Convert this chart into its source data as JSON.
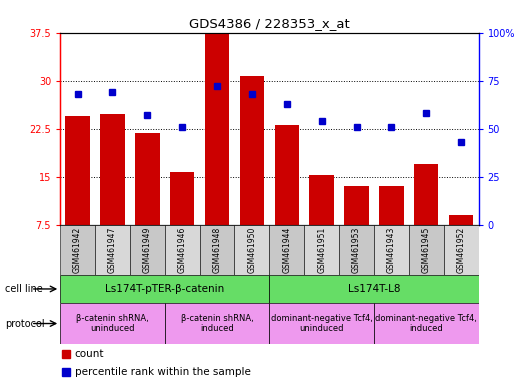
{
  "title": "GDS4386 / 228353_x_at",
  "samples": [
    "GSM461942",
    "GSM461947",
    "GSM461949",
    "GSM461946",
    "GSM461948",
    "GSM461950",
    "GSM461944",
    "GSM461951",
    "GSM461953",
    "GSM461943",
    "GSM461945",
    "GSM461952"
  ],
  "counts": [
    24.5,
    24.8,
    21.8,
    15.7,
    37.3,
    30.8,
    23.0,
    15.3,
    13.5,
    13.5,
    17.0,
    9.0
  ],
  "percentiles": [
    68,
    69,
    57,
    51,
    72,
    68,
    63,
    54,
    51,
    51,
    58,
    43
  ],
  "ylim_left": [
    7.5,
    37.5
  ],
  "ylim_right": [
    0,
    100
  ],
  "yticks_left": [
    7.5,
    15.0,
    22.5,
    30.0,
    37.5
  ],
  "ytick_labels_left": [
    "7.5",
    "15",
    "22.5",
    "30",
    "37.5"
  ],
  "yticks_right": [
    0,
    25,
    50,
    75,
    100
  ],
  "ytick_labels_right": [
    "0",
    "25",
    "50",
    "75",
    "100%"
  ],
  "bar_color": "#cc0000",
  "dot_color": "#0000cc",
  "bar_width": 0.7,
  "cell_line_groups": [
    {
      "label": "Ls174T-pTER-β-catenin",
      "start": 0,
      "end": 6,
      "color": "#66dd66"
    },
    {
      "label": "Ls174T-L8",
      "start": 6,
      "end": 12,
      "color": "#66dd66"
    }
  ],
  "protocol_groups": [
    {
      "label": "β-catenin shRNA,\nuninduced",
      "start": 0,
      "end": 3,
      "color": "#ee99ee"
    },
    {
      "label": "β-catenin shRNA,\ninduced",
      "start": 3,
      "end": 6,
      "color": "#ee99ee"
    },
    {
      "label": "dominant-negative Tcf4,\nuninduced",
      "start": 6,
      "end": 9,
      "color": "#ee99ee"
    },
    {
      "label": "dominant-negative Tcf4,\ninduced",
      "start": 9,
      "end": 12,
      "color": "#ee99ee"
    }
  ],
  "cell_line_label": "cell line",
  "protocol_label": "protocol",
  "legend_count_label": "count",
  "legend_pct_label": "percentile rank within the sample",
  "xtick_bg": "#cccccc"
}
